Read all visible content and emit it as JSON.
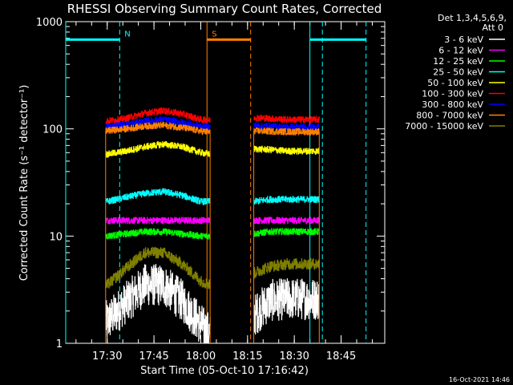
{
  "chart_data": {
    "type": "line",
    "title": "RHESSI Observing Summary Count Rates, Corrected",
    "xlabel": "Start Time (05-Oct-10 17:16:42)",
    "ylabel": "Corrected Count Rate (s⁻¹ detector⁻¹)",
    "yscale": "log",
    "ylim": [
      1,
      1000
    ],
    "xlim": [
      "17:16:42",
      "18:59:00"
    ],
    "x_ticks": [
      "17:30",
      "17:45",
      "18:00",
      "18:15",
      "18:30",
      "18:45"
    ],
    "y_ticks": [
      "1",
      "10",
      "100",
      "1000"
    ],
    "legend_header": [
      "Det 1,3,4,5,6,9,",
      "Att 0"
    ],
    "legend_position": "right",
    "footer": "16-Oct-2021 14:46",
    "data_gaps": [
      [
        "17:16:42",
        "17:29:30"
      ],
      [
        "18:03:00",
        "18:17:00"
      ],
      [
        "18:38:00",
        "18:59:00"
      ]
    ],
    "annotations": [
      {
        "label": "N",
        "color": "#00ffff",
        "time": "17:34",
        "meaning": "night begins"
      },
      {
        "label": "S",
        "color": "#ff8000",
        "time": "18:02",
        "meaning": "SAA begins"
      }
    ],
    "event_lines": [
      {
        "color": "#00ffff",
        "style": "solid",
        "time": "17:16:42"
      },
      {
        "color": "#00ffff",
        "style": "dashed",
        "time": "17:34"
      },
      {
        "color": "#00ffff",
        "style": "solid",
        "time": "18:35"
      },
      {
        "color": "#00ffff",
        "style": "dashed",
        "time": "18:39"
      },
      {
        "color": "#00ffff",
        "style": "dashed",
        "time": "18:53"
      },
      {
        "color": "#ff8000",
        "style": "solid",
        "time": "18:02"
      },
      {
        "color": "#ff8000",
        "style": "dashed",
        "time": "18:16"
      }
    ],
    "flag_bars": [
      {
        "color": "#00ffff",
        "from": "17:16:42",
        "to": "17:34"
      },
      {
        "color": "#00ffff",
        "from": "18:35",
        "to": "18:53"
      },
      {
        "color": "#ff8000",
        "from": "18:02",
        "to": "18:16"
      }
    ],
    "segments": [
      {
        "from": "17:29:30",
        "to": "18:03:00"
      },
      {
        "from": "18:17:00",
        "to": "18:38:00"
      }
    ],
    "series": [
      {
        "name": "3 - 6 keV",
        "color": "#ffffff",
        "x": [
          "17:30",
          "17:36",
          "17:42",
          "17:48",
          "17:54",
          "18:00",
          "18:03",
          "18:17",
          "18:22",
          "18:28",
          "18:34",
          "18:38"
        ],
        "y": [
          1.6,
          2.4,
          3.5,
          3.5,
          2.5,
          1.5,
          1.2,
          1.8,
          2.5,
          2.6,
          2.6,
          2.6
        ]
      },
      {
        "name": "6 - 12 keV",
        "color": "#ff00ff",
        "x": [
          "17:30",
          "17:36",
          "17:42",
          "17:48",
          "17:54",
          "18:00",
          "18:03",
          "18:17",
          "18:22",
          "18:28",
          "18:34",
          "18:38"
        ],
        "y": [
          14,
          14,
          14,
          14,
          14,
          14,
          14,
          14,
          14,
          14,
          14,
          14
        ]
      },
      {
        "name": "12 - 25 keV",
        "color": "#00ff00",
        "x": [
          "17:30",
          "17:36",
          "17:42",
          "17:48",
          "17:54",
          "18:00",
          "18:03",
          "18:17",
          "18:22",
          "18:28",
          "18:34",
          "18:38"
        ],
        "y": [
          10,
          10.5,
          11,
          11,
          10.5,
          10,
          10,
          10.5,
          11,
          11,
          11,
          11
        ]
      },
      {
        "name": "25 - 50 keV",
        "color": "#00ffff",
        "x": [
          "17:30",
          "17:36",
          "17:42",
          "17:48",
          "17:54",
          "18:00",
          "18:03",
          "18:17",
          "18:22",
          "18:28",
          "18:34",
          "18:38"
        ],
        "y": [
          21,
          23,
          25,
          26,
          24,
          21,
          21,
          21,
          22,
          22,
          22,
          22
        ]
      },
      {
        "name": "50 - 100 keV",
        "color": "#ffff00",
        "x": [
          "17:30",
          "17:36",
          "17:42",
          "17:48",
          "17:54",
          "18:00",
          "18:03",
          "18:17",
          "18:22",
          "18:28",
          "18:34",
          "18:38"
        ],
        "y": [
          58,
          62,
          68,
          72,
          68,
          60,
          58,
          65,
          64,
          62,
          62,
          62
        ]
      },
      {
        "name": "100 - 300 keV",
        "color": "#ff0000",
        "x": [
          "17:30",
          "17:36",
          "17:42",
          "17:48",
          "17:54",
          "18:00",
          "18:03",
          "18:17",
          "18:22",
          "18:28",
          "18:34",
          "18:38"
        ],
        "y": [
          118,
          125,
          140,
          148,
          138,
          122,
          120,
          128,
          125,
          122,
          122,
          122
        ]
      },
      {
        "name": "300 - 800 keV",
        "color": "#0000ff",
        "x": [
          "17:30",
          "17:36",
          "17:42",
          "17:48",
          "17:54",
          "18:00",
          "18:03",
          "18:17",
          "18:22",
          "18:28",
          "18:34",
          "18:38"
        ],
        "y": [
          105,
          110,
          118,
          122,
          115,
          106,
          104,
          108,
          106,
          104,
          104,
          104
        ]
      },
      {
        "name": "800 - 7000 keV",
        "color": "#ff8000",
        "x": [
          "17:30",
          "17:36",
          "17:42",
          "17:48",
          "17:54",
          "18:00",
          "18:03",
          "18:17",
          "18:22",
          "18:28",
          "18:34",
          "18:38"
        ],
        "y": [
          96,
          100,
          106,
          108,
          103,
          95,
          93,
          96,
          95,
          94,
          94,
          94
        ]
      },
      {
        "name": "7000 - 15000 keV",
        "color": "#808000",
        "x": [
          "17:30",
          "17:36",
          "17:42",
          "17:48",
          "17:54",
          "18:00",
          "18:03",
          "18:17",
          "18:22",
          "18:28",
          "18:34",
          "18:38"
        ],
        "y": [
          3.5,
          5.0,
          7.0,
          7.0,
          5.5,
          3.8,
          3.5,
          4.5,
          5.2,
          5.5,
          5.5,
          5.5
        ]
      }
    ]
  }
}
